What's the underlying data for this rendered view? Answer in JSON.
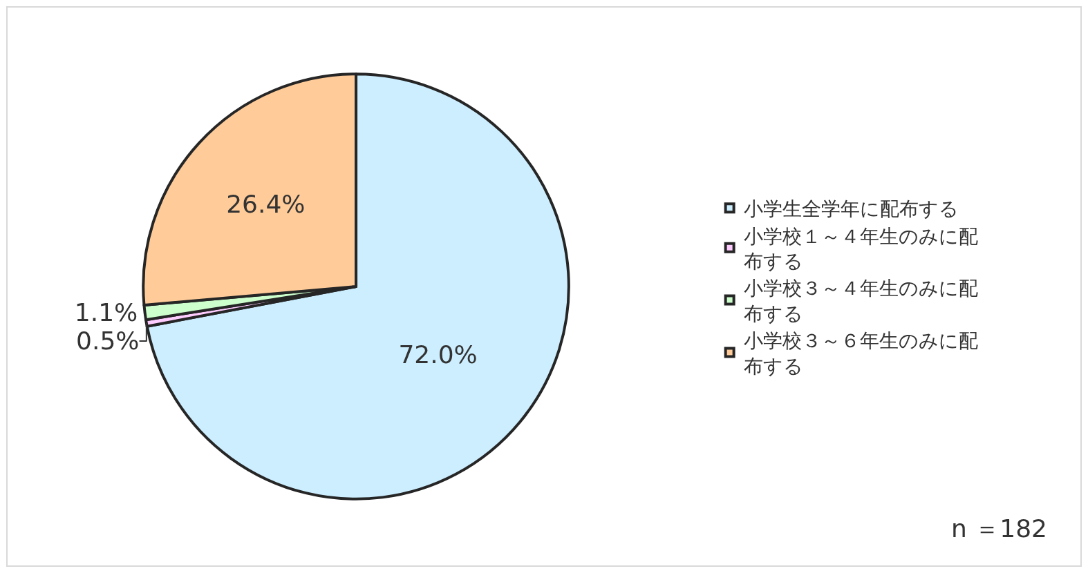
{
  "chart_data": {
    "type": "pie",
    "categories": [
      "小学生全学年に配布する",
      "小学校１～４年生のみに配布する",
      "小学校３～４年生のみに配布する",
      "小学校３～６年生のみに配布する"
    ],
    "values": [
      72.0,
      0.5,
      1.1,
      26.4
    ],
    "colors": [
      "#cceeff",
      "#ffccff",
      "#ccffcc",
      "#ffcc99"
    ],
    "value_labels": [
      "72.0%",
      "0.5%",
      "1.1%",
      "26.4%"
    ],
    "legend": "right",
    "annotations": [
      "n ＝182"
    ]
  }
}
